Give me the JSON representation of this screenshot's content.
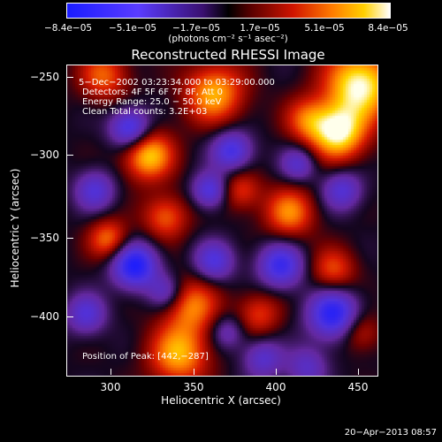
{
  "colorbar": {
    "ticks": [
      "−8.4e−05",
      "−5.1e−05",
      "−1.7e−05",
      "1.7e−05",
      "5.1e−05",
      "8.4e−05"
    ],
    "unit": "(photons cm⁻² s⁻¹ asec⁻²)"
  },
  "title": "Reconstructed RHESSI Image",
  "annotations": {
    "time": "5−Dec−2002 03:23:34.000 to 03:29:00.000",
    "detectors": "Detectors: 4F 5F 6F 7F 8F, Att 0",
    "energy": "Energy Range: 25.0 − 50.0 keV",
    "clean": "Clean    Total counts: 3.2E+03",
    "peak": "Position of Peak: [442,−287]"
  },
  "axes": {
    "xlabel": "Heliocentric X (arcsec)",
    "ylabel": "Heliocentric Y (arcsec)",
    "xticks": [
      "300",
      "350",
      "400",
      "450"
    ],
    "yticks": [
      "−250",
      "−300",
      "−350",
      "−400"
    ]
  },
  "footer": "20−Apr−2013 08:57"
}
